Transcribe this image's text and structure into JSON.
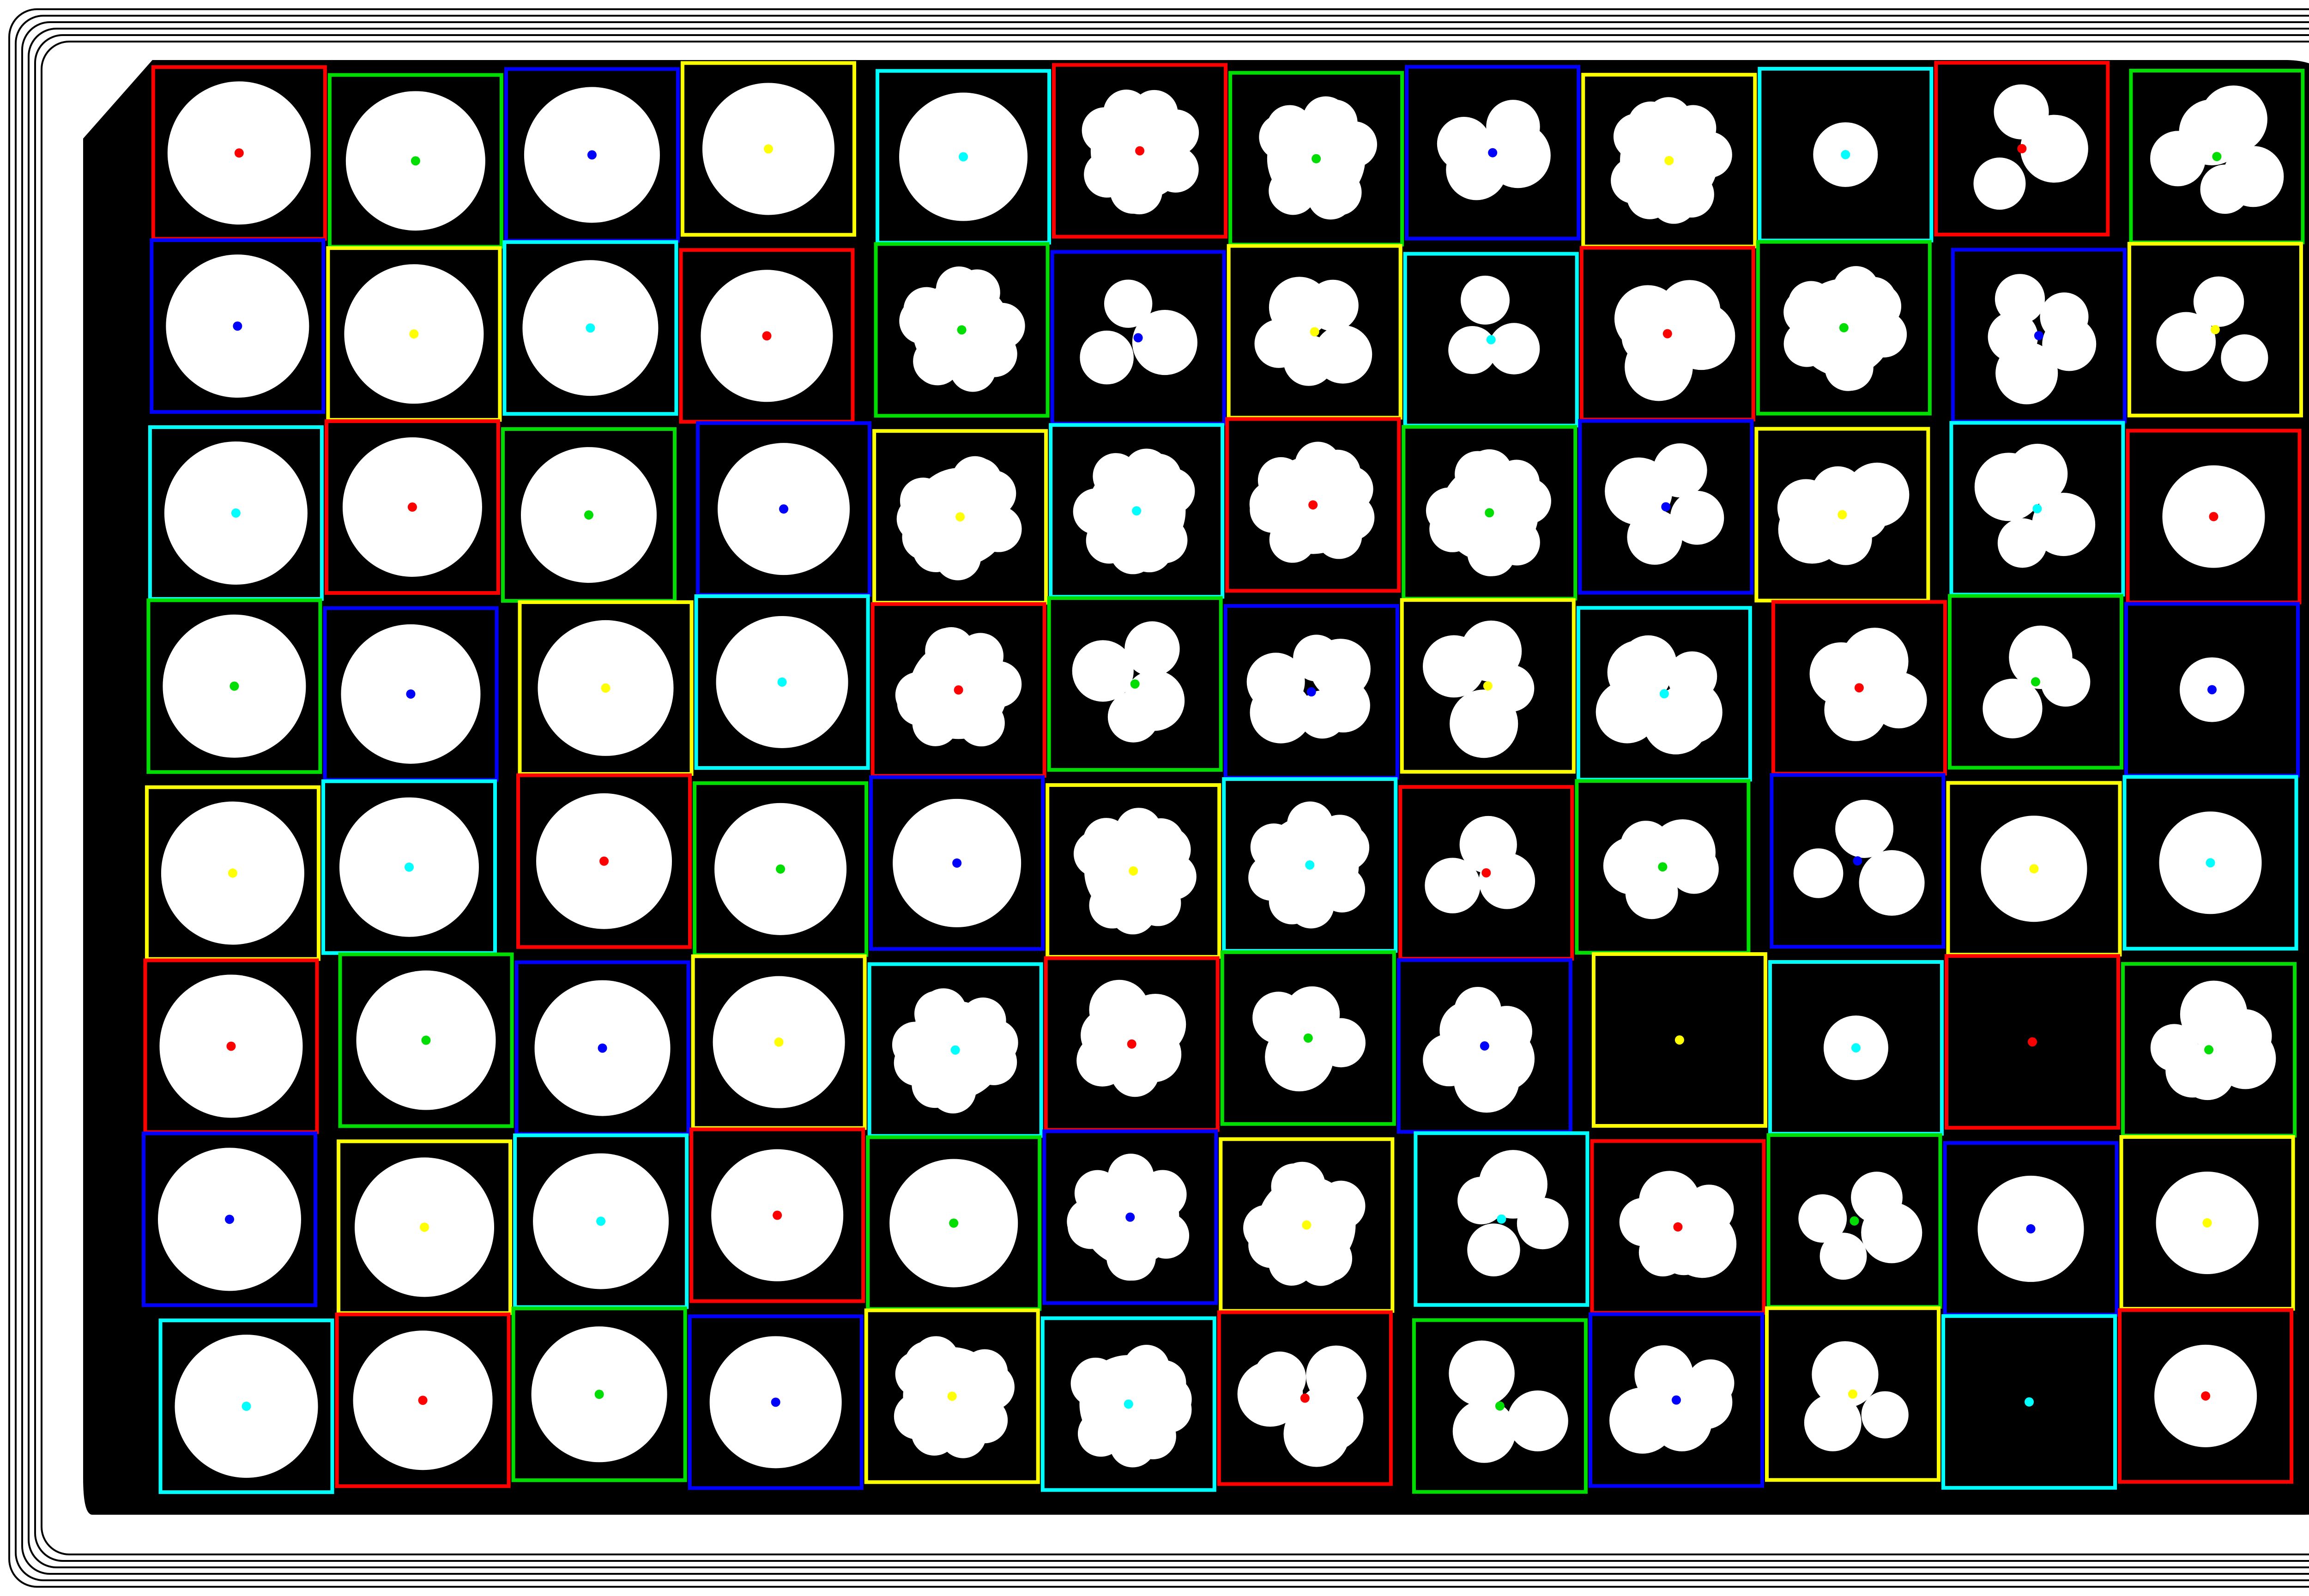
{
  "image": {
    "description_colors": {
      "background": "#000000",
      "plate_frame": "#ffffff",
      "colony": "#ffffff"
    },
    "box_colors": {
      "red": "#ff0000",
      "green": "#00dd00",
      "blue": "#0000ff",
      "yellow": "#ffff00",
      "cyan": "#00ffff"
    },
    "grid": {
      "rows": 8,
      "cols": 12
    },
    "row_color_patterns": [
      [
        "red",
        "green",
        "blue",
        "yellow",
        "cyan",
        "red",
        "green",
        "blue",
        "yellow",
        "cyan",
        "red",
        "green"
      ],
      [
        "blue",
        "yellow",
        "cyan",
        "red",
        "green",
        "blue",
        "yellow",
        "cyan",
        "red",
        "green",
        "blue",
        "yellow"
      ],
      [
        "cyan",
        "red",
        "green",
        "blue",
        "yellow",
        "cyan",
        "red",
        "green",
        "blue",
        "yellow",
        "cyan",
        "red"
      ],
      [
        "green",
        "blue",
        "yellow",
        "cyan",
        "red",
        "green",
        "blue",
        "yellow",
        "cyan",
        "red",
        "green",
        "blue"
      ],
      [
        "yellow",
        "cyan",
        "red",
        "green",
        "blue",
        "yellow",
        "cyan",
        "red",
        "green",
        "blue",
        "yellow",
        "cyan"
      ],
      [
        "red",
        "green",
        "blue",
        "yellow",
        "cyan",
        "red",
        "green",
        "blue",
        "yellow",
        "cyan",
        "red",
        "green"
      ],
      [
        "blue",
        "yellow",
        "cyan",
        "red",
        "green",
        "blue",
        "yellow",
        "cyan",
        "red",
        "green",
        "blue",
        "yellow"
      ],
      [
        "cyan",
        "red",
        "green",
        "blue",
        "yellow",
        "cyan",
        "red",
        "green",
        "blue",
        "yellow",
        "cyan",
        "red"
      ]
    ],
    "colony_shape_per_row": [
      [
        "round",
        "round",
        "round",
        "round",
        "round",
        "lobed",
        "lobed",
        "clustered",
        "lobed",
        "small",
        "clustered",
        "clustered"
      ],
      [
        "round",
        "round",
        "round",
        "round",
        "lobed",
        "clustered",
        "clustered",
        "clustered",
        "clustered",
        "lobed",
        "clustered",
        "clustered"
      ],
      [
        "round",
        "round",
        "round",
        "round",
        "lobed",
        "lobed",
        "lobed",
        "lobed",
        "clustered",
        "clustered",
        "clustered",
        "round"
      ],
      [
        "round",
        "round",
        "round",
        "round",
        "lobed",
        "clustered",
        "clustered",
        "clustered",
        "clustered",
        "clustered",
        "clustered",
        "small"
      ],
      [
        "round",
        "round",
        "round",
        "round",
        "round",
        "lobed",
        "lobed",
        "clustered",
        "clustered",
        "clustered",
        "round",
        "round"
      ],
      [
        "round",
        "round",
        "round",
        "round",
        "lobed",
        "clustered",
        "clustered",
        "clustered",
        "empty",
        "small",
        "empty",
        "clustered"
      ],
      [
        "round",
        "round",
        "round",
        "round",
        "round",
        "lobed",
        "lobed",
        "clustered",
        "clustered",
        "clustered",
        "round",
        "round"
      ],
      [
        "round",
        "round",
        "round",
        "round",
        "lobed",
        "lobed",
        "clustered",
        "clustered",
        "clustered",
        "clustered",
        "empty",
        "round"
      ]
    ]
  }
}
